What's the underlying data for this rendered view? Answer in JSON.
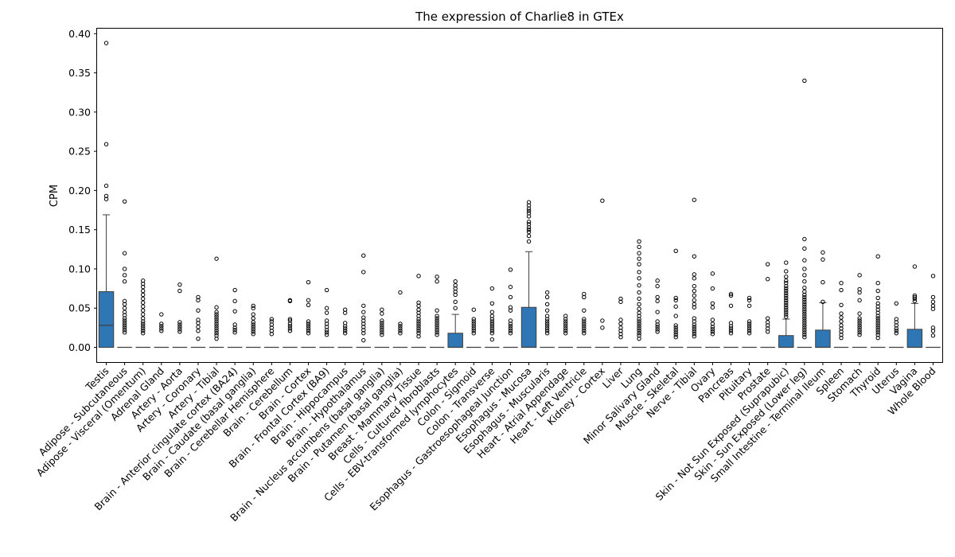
{
  "chart_data": {
    "type": "box",
    "title": "The expression of Charlie8 in GTEx",
    "xlabel": "",
    "ylabel": "CPM",
    "ylim": [
      -0.02,
      0.408
    ],
    "yticks": [
      0.0,
      0.05,
      0.1,
      0.15,
      0.2,
      0.25,
      0.3,
      0.35,
      0.4
    ],
    "ytick_labels": [
      "0.00",
      "0.05",
      "0.10",
      "0.15",
      "0.20",
      "0.25",
      "0.30",
      "0.35",
      "0.40"
    ],
    "box_color": "#2f77b4",
    "grid": false,
    "categories": [
      "Testis",
      "Adipose - Subcutaneous",
      "Adipose - Visceral (Omentum)",
      "Adrenal Gland",
      "Artery - Aorta",
      "Artery - Coronary",
      "Artery - Tibial",
      "Brain - Anterior cingulate cortex (BA24)",
      "Brain - Caudate (basal ganglia)",
      "Brain - Cerebellar Hemisphere",
      "Brain - Cerebellum",
      "Brain - Cortex",
      "Brain - Frontal Cortex (BA9)",
      "Brain - Hippocampus",
      "Brain - Hypothalamus",
      "Brain - Nucleus accumbens (basal ganglia)",
      "Brain - Putamen (basal ganglia)",
      "Breast - Mammary Tissue",
      "Cells - Cultured fibroblasts",
      "Cells - EBV-transformed lymphocytes",
      "Colon - Sigmoid",
      "Colon - Transverse",
      "Esophagus - Gastroesophageal Junction",
      "Esophagus - Mucosa",
      "Esophagus - Muscularis",
      "Heart - Atrial Appendage",
      "Heart - Left Ventricle",
      "Kidney - Cortex",
      "Liver",
      "Lung",
      "Minor Salivary Gland",
      "Muscle - Skeletal",
      "Nerve - Tibial",
      "Ovary",
      "Pancreas",
      "Pituitary",
      "Prostate",
      "Skin - Not Sun Exposed (Suprapubic)",
      "Skin - Sun Exposed (Lower leg)",
      "Small Intestine - Terminal Ileum",
      "Spleen",
      "Stomach",
      "Thyroid",
      "Uterus",
      "Vagina",
      "Whole Blood"
    ],
    "boxes": [
      {
        "q1": 0.0,
        "median": 0.028,
        "q3": 0.071,
        "whisker_low": 0.0,
        "whisker_high": 0.169,
        "outliers": [
          0.189,
          0.193,
          0.206,
          0.259,
          0.388
        ]
      },
      {
        "q1": 0.0,
        "median": 0.0,
        "q3": 0.0,
        "whisker_low": 0.0,
        "whisker_high": 0.0,
        "outliers": [
          0.019,
          0.022,
          0.025,
          0.028,
          0.031,
          0.034,
          0.037,
          0.041,
          0.045,
          0.05,
          0.055,
          0.059,
          0.084,
          0.092,
          0.1,
          0.12,
          0.186
        ]
      },
      {
        "q1": 0.0,
        "median": 0.0,
        "q3": 0.0,
        "whisker_low": 0.0,
        "whisker_high": 0.0,
        "outliers": [
          0.018,
          0.021,
          0.024,
          0.027,
          0.03,
          0.033,
          0.037,
          0.042,
          0.047,
          0.052,
          0.057,
          0.062,
          0.067,
          0.072,
          0.077,
          0.081,
          0.085
        ]
      },
      {
        "q1": 0.0,
        "median": 0.0,
        "q3": 0.0,
        "whisker_low": 0.0,
        "whisker_high": 0.0,
        "outliers": [
          0.021,
          0.024,
          0.027,
          0.03,
          0.042
        ]
      },
      {
        "q1": 0.0,
        "median": 0.0,
        "q3": 0.0,
        "whisker_low": 0.0,
        "whisker_high": 0.0,
        "outliers": [
          0.02,
          0.023,
          0.026,
          0.029,
          0.032,
          0.072,
          0.08
        ]
      },
      {
        "q1": 0.0,
        "median": 0.0,
        "q3": 0.0,
        "whisker_low": 0.0,
        "whisker_high": 0.0,
        "outliers": [
          0.011,
          0.021,
          0.026,
          0.031,
          0.035,
          0.047,
          0.06,
          0.064
        ]
      },
      {
        "q1": 0.0,
        "median": 0.0,
        "q3": 0.0,
        "whisker_low": 0.0,
        "whisker_high": 0.0,
        "outliers": [
          0.011,
          0.015,
          0.018,
          0.021,
          0.024,
          0.027,
          0.03,
          0.033,
          0.036,
          0.039,
          0.042,
          0.045,
          0.051,
          0.113
        ]
      },
      {
        "q1": 0.0,
        "median": 0.0,
        "q3": 0.0,
        "whisker_low": 0.0,
        "whisker_high": 0.0,
        "outliers": [
          0.019,
          0.022,
          0.025,
          0.029,
          0.046,
          0.059,
          0.073
        ]
      },
      {
        "q1": 0.0,
        "median": 0.0,
        "q3": 0.0,
        "whisker_low": 0.0,
        "whisker_high": 0.0,
        "outliers": [
          0.017,
          0.02,
          0.023,
          0.026,
          0.029,
          0.032,
          0.037,
          0.042,
          0.05,
          0.053
        ]
      },
      {
        "q1": 0.0,
        "median": 0.0,
        "q3": 0.0,
        "whisker_low": 0.0,
        "whisker_high": 0.0,
        "outliers": [
          0.017,
          0.021,
          0.025,
          0.029,
          0.033,
          0.036
        ]
      },
      {
        "q1": 0.0,
        "median": 0.0,
        "q3": 0.0,
        "whisker_low": 0.0,
        "whisker_high": 0.0,
        "outliers": [
          0.021,
          0.024,
          0.027,
          0.03,
          0.034,
          0.036,
          0.059,
          0.06
        ]
      },
      {
        "q1": 0.0,
        "median": 0.0,
        "q3": 0.0,
        "whisker_low": 0.0,
        "whisker_high": 0.0,
        "outliers": [
          0.018,
          0.021,
          0.024,
          0.027,
          0.03,
          0.033,
          0.054,
          0.06,
          0.083
        ]
      },
      {
        "q1": 0.0,
        "median": 0.0,
        "q3": 0.0,
        "whisker_low": 0.0,
        "whisker_high": 0.0,
        "outliers": [
          0.016,
          0.019,
          0.022,
          0.026,
          0.03,
          0.034,
          0.044,
          0.05,
          0.073
        ]
      },
      {
        "q1": 0.0,
        "median": 0.0,
        "q3": 0.0,
        "whisker_low": 0.0,
        "whisker_high": 0.0,
        "outliers": [
          0.018,
          0.021,
          0.024,
          0.027,
          0.031,
          0.044,
          0.048
        ]
      },
      {
        "q1": 0.0,
        "median": 0.0,
        "q3": 0.0,
        "whisker_low": 0.0,
        "whisker_high": 0.0,
        "outliers": [
          0.009,
          0.018,
          0.022,
          0.026,
          0.03,
          0.034,
          0.038,
          0.045,
          0.053,
          0.096,
          0.117
        ]
      },
      {
        "q1": 0.0,
        "median": 0.0,
        "q3": 0.0,
        "whisker_low": 0.0,
        "whisker_high": 0.0,
        "outliers": [
          0.016,
          0.019,
          0.022,
          0.025,
          0.028,
          0.031,
          0.034,
          0.043,
          0.048
        ]
      },
      {
        "q1": 0.0,
        "median": 0.0,
        "q3": 0.0,
        "whisker_low": 0.0,
        "whisker_high": 0.0,
        "outliers": [
          0.018,
          0.021,
          0.024,
          0.027,
          0.03,
          0.07
        ]
      },
      {
        "q1": 0.0,
        "median": 0.0,
        "q3": 0.0,
        "whisker_low": 0.0,
        "whisker_high": 0.0,
        "outliers": [
          0.014,
          0.018,
          0.021,
          0.024,
          0.027,
          0.03,
          0.033,
          0.036,
          0.04,
          0.044,
          0.048,
          0.053,
          0.057,
          0.091
        ]
      },
      {
        "q1": 0.0,
        "median": 0.0,
        "q3": 0.0,
        "whisker_low": 0.0,
        "whisker_high": 0.0,
        "outliers": [
          0.016,
          0.019,
          0.022,
          0.025,
          0.028,
          0.031,
          0.034,
          0.037,
          0.04,
          0.047,
          0.084,
          0.09
        ]
      },
      {
        "q1": 0.0,
        "median": 0.0,
        "q3": 0.018,
        "whisker_low": 0.0,
        "whisker_high": 0.042,
        "outliers": [
          0.05,
          0.058,
          0.067,
          0.071,
          0.075,
          0.079,
          0.084
        ]
      },
      {
        "q1": 0.0,
        "median": 0.0,
        "q3": 0.0,
        "whisker_low": 0.0,
        "whisker_high": 0.0,
        "outliers": [
          0.018,
          0.021,
          0.024,
          0.027,
          0.03,
          0.033,
          0.036,
          0.048
        ]
      },
      {
        "q1": 0.0,
        "median": 0.0,
        "q3": 0.0,
        "whisker_low": 0.0,
        "whisker_high": 0.0,
        "outliers": [
          0.01,
          0.018,
          0.021,
          0.024,
          0.027,
          0.03,
          0.033,
          0.036,
          0.04,
          0.045,
          0.056,
          0.075
        ]
      },
      {
        "q1": 0.0,
        "median": 0.0,
        "q3": 0.0,
        "whisker_low": 0.0,
        "whisker_high": 0.0,
        "outliers": [
          0.018,
          0.021,
          0.024,
          0.027,
          0.03,
          0.034,
          0.047,
          0.051,
          0.064,
          0.077,
          0.099
        ]
      },
      {
        "q1": 0.0,
        "median": 0.0,
        "q3": 0.051,
        "whisker_low": 0.0,
        "whisker_high": 0.122,
        "outliers": [
          0.135,
          0.142,
          0.147,
          0.15,
          0.153,
          0.157,
          0.16,
          0.167,
          0.171,
          0.174,
          0.177,
          0.181,
          0.185
        ]
      },
      {
        "q1": 0.0,
        "median": 0.0,
        "q3": 0.0,
        "whisker_low": 0.0,
        "whisker_high": 0.0,
        "outliers": [
          0.018,
          0.021,
          0.024,
          0.027,
          0.03,
          0.033,
          0.036,
          0.04,
          0.047,
          0.055,
          0.064,
          0.07
        ]
      },
      {
        "q1": 0.0,
        "median": 0.0,
        "q3": 0.0,
        "whisker_low": 0.0,
        "whisker_high": 0.0,
        "outliers": [
          0.018,
          0.021,
          0.024,
          0.027,
          0.03,
          0.033,
          0.036,
          0.04
        ]
      },
      {
        "q1": 0.0,
        "median": 0.0,
        "q3": 0.0,
        "whisker_low": 0.0,
        "whisker_high": 0.0,
        "outliers": [
          0.018,
          0.021,
          0.024,
          0.027,
          0.03,
          0.033,
          0.036,
          0.047,
          0.064,
          0.068
        ]
      },
      {
        "q1": 0.0,
        "median": 0.0,
        "q3": 0.0,
        "whisker_low": 0.0,
        "whisker_high": 0.0,
        "outliers": [
          0.025,
          0.034,
          0.187
        ]
      },
      {
        "q1": 0.0,
        "median": 0.0,
        "q3": 0.0,
        "whisker_low": 0.0,
        "whisker_high": 0.0,
        "outliers": [
          0.013,
          0.017,
          0.021,
          0.025,
          0.03,
          0.035,
          0.058,
          0.062
        ]
      },
      {
        "q1": 0.0,
        "median": 0.0,
        "q3": 0.0,
        "whisker_low": 0.0,
        "whisker_high": 0.0,
        "outliers": [
          0.011,
          0.015,
          0.018,
          0.021,
          0.024,
          0.027,
          0.03,
          0.033,
          0.036,
          0.04,
          0.044,
          0.049,
          0.055,
          0.062,
          0.07,
          0.079,
          0.088,
          0.096,
          0.106,
          0.113,
          0.12,
          0.128,
          0.135
        ]
      },
      {
        "q1": 0.0,
        "median": 0.0,
        "q3": 0.0,
        "whisker_low": 0.0,
        "whisker_high": 0.0,
        "outliers": [
          0.02,
          0.023,
          0.026,
          0.029,
          0.033,
          0.045,
          0.059,
          0.064,
          0.078,
          0.085
        ]
      },
      {
        "q1": 0.0,
        "median": 0.0,
        "q3": 0.0,
        "whisker_low": 0.0,
        "whisker_high": 0.0,
        "outliers": [
          0.013,
          0.016,
          0.019,
          0.022,
          0.025,
          0.028,
          0.04,
          0.052,
          0.06,
          0.063,
          0.123
        ]
      },
      {
        "q1": 0.0,
        "median": 0.0,
        "q3": 0.0,
        "whisker_low": 0.0,
        "whisker_high": 0.0,
        "outliers": [
          0.014,
          0.017,
          0.02,
          0.023,
          0.026,
          0.029,
          0.033,
          0.037,
          0.051,
          0.055,
          0.06,
          0.066,
          0.072,
          0.078,
          0.088,
          0.093,
          0.116,
          0.188
        ]
      },
      {
        "q1": 0.0,
        "median": 0.0,
        "q3": 0.0,
        "whisker_low": 0.0,
        "whisker_high": 0.0,
        "outliers": [
          0.017,
          0.02,
          0.023,
          0.026,
          0.03,
          0.035,
          0.051,
          0.056,
          0.075,
          0.094
        ]
      },
      {
        "q1": 0.0,
        "median": 0.0,
        "q3": 0.0,
        "whisker_low": 0.0,
        "whisker_high": 0.0,
        "outliers": [
          0.018,
          0.021,
          0.024,
          0.027,
          0.031,
          0.053,
          0.066,
          0.068
        ]
      },
      {
        "q1": 0.0,
        "median": 0.0,
        "q3": 0.0,
        "whisker_low": 0.0,
        "whisker_high": 0.0,
        "outliers": [
          0.018,
          0.021,
          0.024,
          0.027,
          0.03,
          0.033,
          0.053,
          0.06,
          0.063
        ]
      },
      {
        "q1": 0.0,
        "median": 0.0,
        "q3": 0.0,
        "whisker_low": 0.0,
        "whisker_high": 0.0,
        "outliers": [
          0.02,
          0.024,
          0.028,
          0.032,
          0.037,
          0.087,
          0.106
        ]
      },
      {
        "q1": 0.0,
        "median": 0.0,
        "q3": 0.015,
        "whisker_low": 0.0,
        "whisker_high": 0.036,
        "outliers": [
          0.039,
          0.042,
          0.045,
          0.048,
          0.051,
          0.054,
          0.057,
          0.06,
          0.063,
          0.066,
          0.069,
          0.072,
          0.075,
          0.078,
          0.082,
          0.085,
          0.09,
          0.097,
          0.108
        ]
      },
      {
        "q1": 0.0,
        "median": 0.0,
        "q3": 0.0,
        "whisker_low": 0.0,
        "whisker_high": 0.0,
        "outliers": [
          0.013,
          0.016,
          0.019,
          0.022,
          0.025,
          0.028,
          0.031,
          0.034,
          0.037,
          0.04,
          0.043,
          0.046,
          0.049,
          0.052,
          0.055,
          0.058,
          0.061,
          0.064,
          0.067,
          0.071,
          0.076,
          0.084,
          0.092,
          0.1,
          0.111,
          0.126,
          0.138,
          0.34
        ]
      },
      {
        "q1": 0.0,
        "median": 0.0,
        "q3": 0.022,
        "whisker_low": 0.0,
        "whisker_high": 0.057,
        "outliers": [
          0.058,
          0.083,
          0.112,
          0.121
        ]
      },
      {
        "q1": 0.0,
        "median": 0.0,
        "q3": 0.0,
        "whisker_low": 0.0,
        "whisker_high": 0.0,
        "outliers": [
          0.012,
          0.016,
          0.02,
          0.024,
          0.028,
          0.033,
          0.038,
          0.043,
          0.054,
          0.073,
          0.082
        ]
      },
      {
        "q1": 0.0,
        "median": 0.0,
        "q3": 0.0,
        "whisker_low": 0.0,
        "whisker_high": 0.0,
        "outliers": [
          0.016,
          0.019,
          0.022,
          0.025,
          0.028,
          0.031,
          0.034,
          0.037,
          0.043,
          0.06,
          0.07,
          0.074,
          0.092
        ]
      },
      {
        "q1": 0.0,
        "median": 0.0,
        "q3": 0.0,
        "whisker_low": 0.0,
        "whisker_high": 0.0,
        "outliers": [
          0.012,
          0.016,
          0.019,
          0.022,
          0.025,
          0.028,
          0.031,
          0.034,
          0.037,
          0.04,
          0.044,
          0.048,
          0.052,
          0.056,
          0.063,
          0.072,
          0.082,
          0.116
        ]
      },
      {
        "q1": 0.0,
        "median": 0.0,
        "q3": 0.0,
        "whisker_low": 0.0,
        "whisker_high": 0.0,
        "outliers": [
          0.018,
          0.021,
          0.024,
          0.028,
          0.032,
          0.036,
          0.056
        ]
      },
      {
        "q1": 0.0,
        "median": 0.0,
        "q3": 0.023,
        "whisker_low": 0.0,
        "whisker_high": 0.056,
        "outliers": [
          0.059,
          0.062,
          0.064,
          0.066,
          0.103
        ]
      },
      {
        "q1": 0.0,
        "median": 0.0,
        "q3": 0.0,
        "whisker_low": 0.0,
        "whisker_high": 0.0,
        "outliers": [
          0.015,
          0.021,
          0.025,
          0.049,
          0.053,
          0.058,
          0.064,
          0.091
        ]
      }
    ]
  }
}
